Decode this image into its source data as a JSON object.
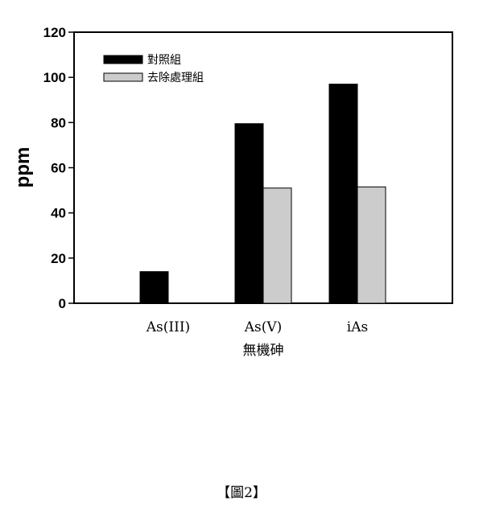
{
  "chart_data": {
    "type": "bar",
    "categories": [
      "As(III)",
      "As(V)",
      "iAs"
    ],
    "series": [
      {
        "name": "對照組",
        "values": [
          14,
          79.5,
          97
        ],
        "color": "#000000"
      },
      {
        "name": "去除處理組",
        "values": [
          null,
          51,
          51.5
        ],
        "color": "#cccccc"
      }
    ],
    "xlabel": "無機砷",
    "ylabel": "ppm",
    "ylim": [
      0,
      120
    ],
    "yticks": [
      0,
      20,
      40,
      60,
      80,
      100,
      120
    ],
    "grid": false,
    "legend": "top-left"
  },
  "caption": "【圖2】"
}
